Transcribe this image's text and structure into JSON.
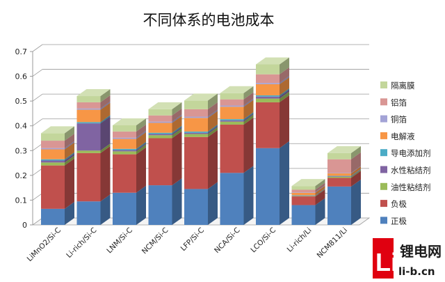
{
  "chart_data": {
    "type": "bar",
    "stacked": true,
    "three_d": true,
    "title": "不同体系的电池成本",
    "xlabel": "",
    "ylabel": "",
    "ylim": [
      0,
      0.7
    ],
    "yticks": [
      "0",
      "0.1",
      "0.2",
      "0.3",
      "0.4",
      "0.5",
      "0.6",
      "0.7"
    ],
    "grid": true,
    "legend_position": "right",
    "categories": [
      "LiMnO2/Si-C",
      "Li-rich/Si-C",
      "LNM/Si-C",
      "NCM/Si-C",
      "LFP/Si-C",
      "NCA/Si-C",
      "LCO/Si-C",
      "Li-rich/Li",
      "NCM811/Li"
    ],
    "series": [
      {
        "name": "正极",
        "color": "#4f81bd",
        "values": [
          0.065,
          0.095,
          0.13,
          0.16,
          0.145,
          0.21,
          0.31,
          0.08,
          0.155
        ]
      },
      {
        "name": "负极",
        "color": "#c0504d",
        "values": [
          0.175,
          0.195,
          0.155,
          0.19,
          0.21,
          0.195,
          0.185,
          0.035,
          0.035
        ]
      },
      {
        "name": "油性粘结剂",
        "color": "#9bbb59",
        "values": [
          0.012,
          0.01,
          0.012,
          0.012,
          0.012,
          0.012,
          0.015,
          0.002,
          0.004
        ]
      },
      {
        "name": "水性粘结剂",
        "color": "#8064a2",
        "values": [
          0.008,
          0.11,
          0.005,
          0.005,
          0.005,
          0.005,
          0.008,
          0.002,
          0.002
        ]
      },
      {
        "name": "导电添加剂",
        "color": "#4bacc6",
        "values": [
          0.005,
          0.005,
          0.005,
          0.005,
          0.005,
          0.005,
          0.005,
          0.001,
          0.002
        ]
      },
      {
        "name": "电解液",
        "color": "#f79646",
        "values": [
          0.04,
          0.05,
          0.04,
          0.04,
          0.055,
          0.05,
          0.045,
          0.01,
          0.01
        ]
      },
      {
        "name": "铜箔",
        "color": "#a3a3d6",
        "values": [
          0.005,
          0.005,
          0.005,
          0.005,
          0.005,
          0.005,
          0.005,
          0.002,
          0.002
        ]
      },
      {
        "name": "铝箔",
        "color": "#d99694",
        "values": [
          0.03,
          0.025,
          0.025,
          0.025,
          0.03,
          0.025,
          0.035,
          0.01,
          0.055
        ]
      },
      {
        "name": "隔离膜",
        "color": "#c3d69b",
        "values": [
          0.03,
          0.025,
          0.025,
          0.025,
          0.035,
          0.025,
          0.04,
          0.015,
          0.025
        ]
      }
    ]
  },
  "watermark": {
    "logo_letters": "Li",
    "name_cn": "锂电网",
    "domain": "li-b.cn"
  }
}
